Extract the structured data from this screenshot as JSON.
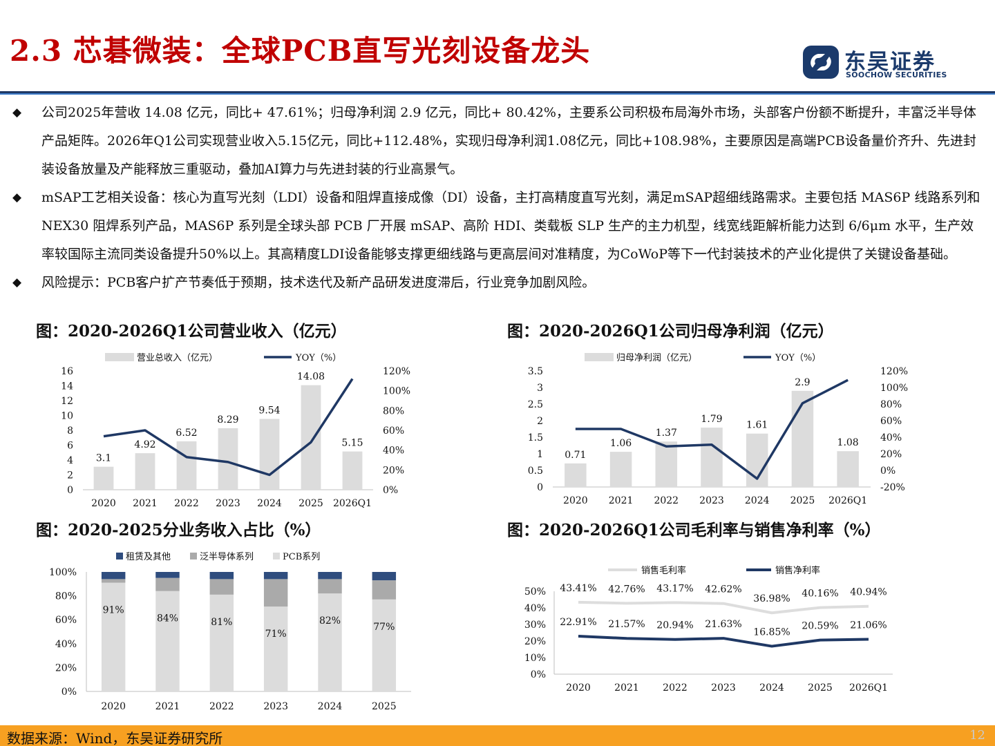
{
  "header": {
    "title": "2.3 芯碁微装：全球PCB直写光刻设备龙头",
    "logo_cn": "东吴证券",
    "logo_en": "SOOCHOW SECURITIES",
    "brand_color": "#1b3a6b",
    "title_color": "#c00000"
  },
  "bullets": [
    {
      "mark": "◆",
      "text": "公司2025年营收 14.08 亿元，同比+ 47.61%；归母净利润 2.9 亿元，同比+ 80.42%，主要系公司积极布局海外市场，头部客户份额不断提升，丰富泛半导体产品矩阵。2026年Q1公司实现营业收入5.15亿元，同比+112.48%，实现归母净利润1.08亿元，同比+108.98%，主要原因是高端PCB设备量价齐升、先进封装设备放量及产能释放三重驱动，叠加AI算力与先进封装的行业高景气。"
    },
    {
      "mark": "◆",
      "text": "mSAP工艺相关设备：核心为直写光刻（LDI）设备和阻焊直接成像（DI）设备，主打高精度直写光刻，满足mSAP超细线路需求。主要包括 MAS6P 线路系列和 NEX30 阻焊系列产品，MAS6P 系列是全球头部 PCB 厂开展 mSAP、高阶 HDI、类载板 SLP 生产的主力机型，线宽线距解析能力达到 6/6μm 水平，生产效率较国际主流同类设备提升50%以上。其高精度LDI设备能够支撑更细线路与更高层间对准精度，为CoWoP等下一代封装技术的产业化提供了关键设备基础。"
    },
    {
      "mark": "◆",
      "text": "风险提示：PCB客户扩产节奏低于预期，技术迭代及新产品研发进度滞后，行业竞争加剧风险。"
    }
  ],
  "charts": {
    "revenue_title": "图：2020-2026Q1公司营业收入（亿元）",
    "profit_title": "图：2020-2026Q1公司归母净利润（亿元）",
    "segment_title": "图：2020-2025分业务收入占比（%）",
    "margin_title": "图：2020-2026Q1公司毛利率与销售净利率（%）"
  },
  "chart_data": [
    {
      "type": "bar",
      "categories": [
        "2020",
        "2021",
        "2022",
        "2023",
        "2024",
        "2025",
        "2026Q1"
      ],
      "series": [
        {
          "name": "营业总收入（亿元）",
          "type": "bar",
          "axis": "left",
          "values": [
            3.1,
            4.92,
            6.52,
            8.29,
            9.54,
            14.08,
            5.15
          ],
          "labels": [
            "3.1",
            "4.92",
            "6.52",
            "8.29",
            "9.54",
            "14.08",
            "5.15"
          ],
          "color": "#dcdcdc"
        },
        {
          "name": "YOY（%）",
          "type": "line",
          "axis": "right",
          "values": [
            54,
            60,
            33,
            28,
            15,
            48,
            112
          ],
          "color": "#1f3864"
        }
      ],
      "ylim": [
        0,
        16
      ],
      "yticks": [
        "0",
        "2",
        "4",
        "6",
        "8",
        "10",
        "12",
        "14",
        "16"
      ],
      "y2lim": [
        0,
        120
      ],
      "y2ticks": [
        "0%",
        "20%",
        "40%",
        "60%",
        "80%",
        "100%",
        "120%"
      ],
      "legend": "top"
    },
    {
      "type": "bar",
      "categories": [
        "2020",
        "2021",
        "2022",
        "2023",
        "2024",
        "2025",
        "2026Q1"
      ],
      "series": [
        {
          "name": "归母净利润（亿元）",
          "type": "bar",
          "axis": "left",
          "values": [
            0.71,
            1.06,
            1.37,
            1.79,
            1.61,
            2.9,
            1.08
          ],
          "labels": [
            "0.71",
            "1.06",
            "1.37",
            "1.79",
            "1.61",
            "2.9",
            "1.08"
          ],
          "color": "#dcdcdc"
        },
        {
          "name": "YOY（%）",
          "type": "line",
          "axis": "right",
          "values": [
            50,
            50,
            29,
            31,
            -10,
            81,
            109
          ],
          "color": "#1f3864"
        }
      ],
      "ylim": [
        0,
        3.5
      ],
      "yticks": [
        "0",
        "0.5",
        "1",
        "1.5",
        "2",
        "2.5",
        "3",
        "3.5"
      ],
      "y2lim": [
        -20,
        120
      ],
      "y2ticks": [
        "-20%",
        "0%",
        "20%",
        "40%",
        "60%",
        "80%",
        "100%",
        "120%"
      ],
      "legend": "top"
    },
    {
      "type": "bar",
      "stacked": true,
      "categories": [
        "2020",
        "2021",
        "2022",
        "2023",
        "2024",
        "2025"
      ],
      "series": [
        {
          "name": "PCB系列",
          "values": [
            91,
            84,
            81,
            71,
            82,
            77
          ],
          "labels": [
            "91%",
            "84%",
            "81%",
            "71%",
            "82%",
            "77%"
          ],
          "color": "#dcdcdc"
        },
        {
          "name": "泛半导体系列",
          "values": [
            3,
            11,
            13,
            23,
            12,
            16
          ],
          "color": "#aaaaaa"
        },
        {
          "name": "租赁及其他",
          "values": [
            6,
            5,
            6,
            6,
            6,
            7
          ],
          "color": "#2f4d7e"
        }
      ],
      "legend_order": [
        "租赁及其他",
        "泛半导体系列",
        "PCB系列"
      ],
      "ylim": [
        0,
        100
      ],
      "yticks": [
        "0%",
        "20%",
        "40%",
        "60%",
        "80%",
        "100%"
      ],
      "legend": "top"
    },
    {
      "type": "line",
      "categories": [
        "2020",
        "2021",
        "2022",
        "2023",
        "2024",
        "2025",
        "2026Q1"
      ],
      "series": [
        {
          "name": "销售毛利率",
          "values": [
            43.41,
            42.76,
            43.17,
            42.62,
            36.98,
            40.16,
            40.94
          ],
          "labels": [
            "43.41%",
            "42.76%",
            "43.17%",
            "42.62%",
            "36.98%",
            "40.16%",
            "40.94%"
          ],
          "color": "#dddddd"
        },
        {
          "name": "销售净利率",
          "values": [
            22.91,
            21.57,
            20.94,
            21.63,
            16.85,
            20.59,
            21.06
          ],
          "labels": [
            "22.91%",
            "21.57%",
            "20.94%",
            "21.63%",
            "16.85%",
            "20.59%",
            "21.06%"
          ],
          "color": "#1f3864"
        }
      ],
      "ylim": [
        0,
        50
      ],
      "yticks": [
        "0%",
        "10%",
        "20%",
        "30%",
        "40%",
        "50%"
      ],
      "legend": "top"
    }
  ],
  "footer": {
    "source": "数据来源：Wind，东吴证券研究所",
    "page": "12"
  }
}
